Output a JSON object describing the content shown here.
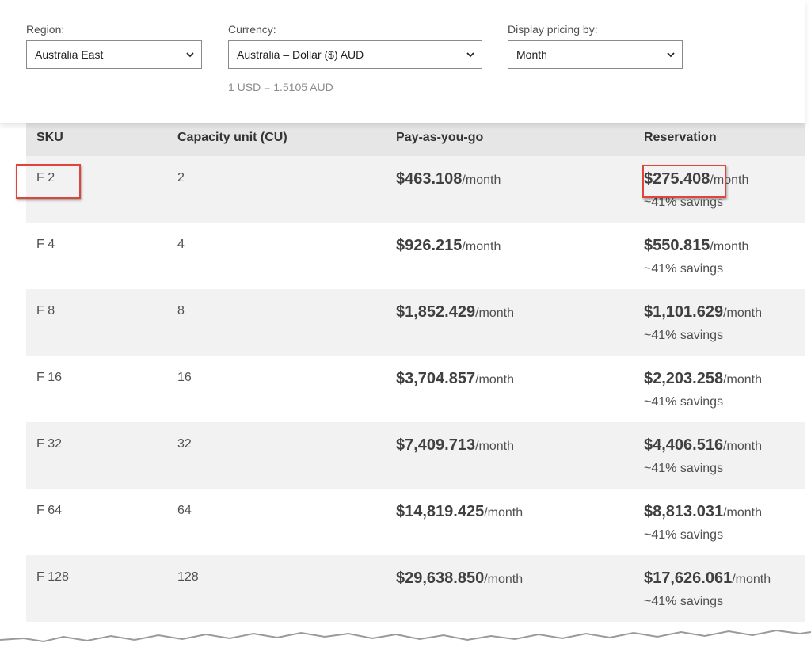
{
  "filters": {
    "region": {
      "label": "Region:",
      "value": "Australia East"
    },
    "currency": {
      "label": "Currency:",
      "value": "Australia – Dollar ($) AUD"
    },
    "display": {
      "label": "Display pricing by:",
      "value": "Month"
    },
    "rate_note": "1 USD = 1.5105 AUD"
  },
  "table": {
    "headers": {
      "sku": "SKU",
      "cu": "Capacity unit (CU)",
      "payg": "Pay-as-you-go",
      "reservation": "Reservation"
    },
    "unit_suffix": "/month",
    "rows": [
      {
        "sku": "F 2",
        "cu": "2",
        "payg": "$463.108",
        "reservation": "$275.408",
        "savings": "~41% savings"
      },
      {
        "sku": "F 4",
        "cu": "4",
        "payg": "$926.215",
        "reservation": "$550.815",
        "savings": "~41% savings"
      },
      {
        "sku": "F 8",
        "cu": "8",
        "payg": "$1,852.429",
        "reservation": "$1,101.629",
        "savings": "~41% savings"
      },
      {
        "sku": "F 16",
        "cu": "16",
        "payg": "$3,704.857",
        "reservation": "$2,203.258",
        "savings": "~41% savings"
      },
      {
        "sku": "F 32",
        "cu": "32",
        "payg": "$7,409.713",
        "reservation": "$4,406.516",
        "savings": "~41% savings"
      },
      {
        "sku": "F 64",
        "cu": "64",
        "payg": "$14,819.425",
        "reservation": "$8,813.031",
        "savings": "~41% savings"
      },
      {
        "sku": "F 128",
        "cu": "128",
        "payg": "$29,638.850",
        "reservation": "$17,626.061",
        "savings": "~41% savings"
      }
    ]
  },
  "colors": {
    "highlight_box": "#e0453b",
    "header_bg": "#e6e6e6",
    "alt_row_bg": "#f2f2f2"
  },
  "icons": {
    "dropdown": "chevron-down-icon"
  }
}
